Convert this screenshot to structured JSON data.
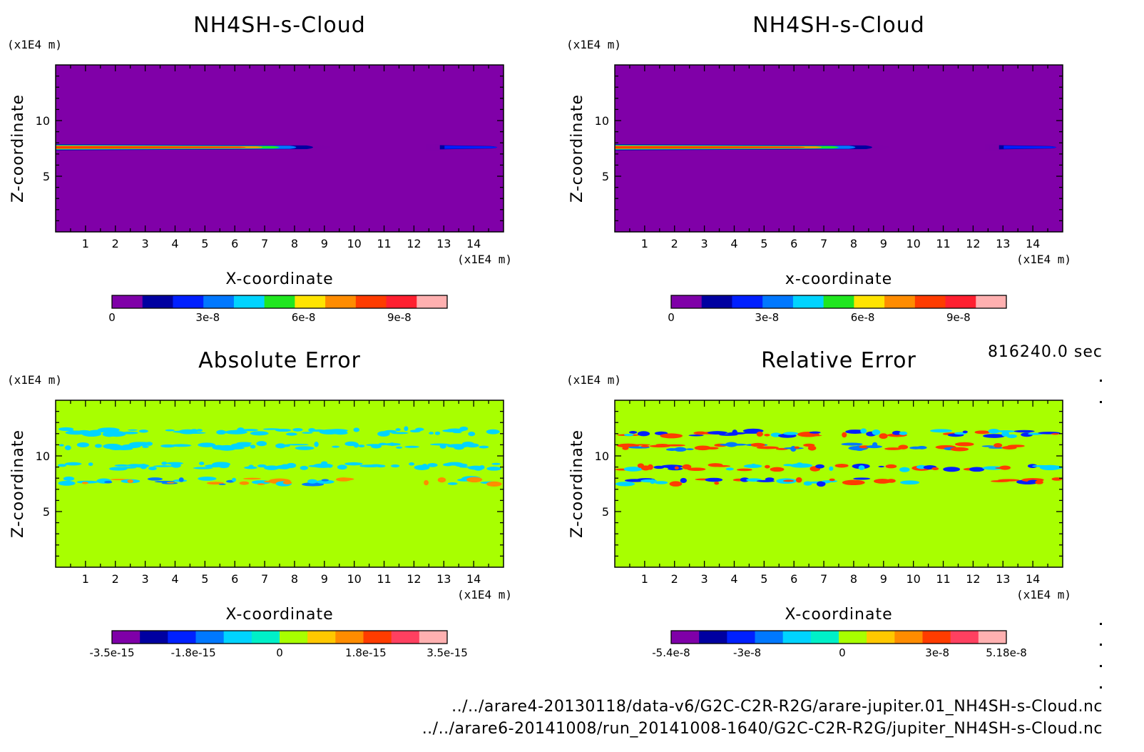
{
  "time_label": "816240.0 sec",
  "files": [
    "../../arare4-20130118/data-v6/G2C-C2R-R2G/arare-jupiter.01_NH4SH-s-Cloud.nc",
    "../../arare6-20141008/run_20141008-1640/G2C-C2R-R2G/jupiter_NH4SH-s-Cloud.nc"
  ],
  "chart_data": [
    {
      "type": "heatmap",
      "title": "NH4SH-s-Cloud",
      "xlabel": "X-coordinate",
      "ylabel": "Z-coordinate",
      "x_unit": "(x1E4 m)",
      "y_unit": "(x1E4 m)",
      "xlim": [
        0,
        15
      ],
      "ylim": [
        0,
        15
      ],
      "x_ticks": [
        1,
        2,
        3,
        4,
        5,
        6,
        7,
        8,
        9,
        10,
        11,
        12,
        13,
        14
      ],
      "y_ticks": [
        5,
        10
      ],
      "background_color": "#8000a8",
      "colorbar": {
        "min": 0,
        "max": 1.05e-07,
        "tick_values": [
          0,
          3e-08,
          6e-08,
          9e-08
        ],
        "tick_labels": [
          "0",
          "3e-8",
          "6e-8",
          "9e-8"
        ],
        "colors": [
          "#7f00a8",
          "#0000a0",
          "#0020ff",
          "#0078ff",
          "#00d4ff",
          "#20e620",
          "#ffe400",
          "#ff8c00",
          "#ff3c00",
          "#ff2030",
          "#ffb0b0"
        ]
      },
      "features": [
        {
          "kind": "layer",
          "x": [
            0,
            9.4
          ],
          "z": 7.6,
          "peak": 1e-07
        },
        {
          "kind": "layer",
          "x": [
            12.4,
            15
          ],
          "z": 7.6,
          "peak": 3e-08
        }
      ]
    },
    {
      "type": "heatmap",
      "title": "NH4SH-s-Cloud",
      "xlabel": "x-coordinate",
      "ylabel": "Z-coordinate",
      "x_unit": "(x1E4 m)",
      "y_unit": "(x1E4 m)",
      "xlim": [
        0,
        15
      ],
      "ylim": [
        0,
        15
      ],
      "x_ticks": [
        1,
        2,
        3,
        4,
        5,
        6,
        7,
        8,
        9,
        10,
        11,
        12,
        13,
        14
      ],
      "y_ticks": [
        5,
        10
      ],
      "background_color": "#8000a8",
      "colorbar": {
        "min": 0,
        "max": 1.05e-07,
        "tick_values": [
          0,
          3e-08,
          6e-08,
          9e-08
        ],
        "tick_labels": [
          "0",
          "3e-8",
          "6e-8",
          "9e-8"
        ],
        "colors": [
          "#7f00a8",
          "#0000a0",
          "#0020ff",
          "#0078ff",
          "#00d4ff",
          "#20e620",
          "#ffe400",
          "#ff8c00",
          "#ff3c00",
          "#ff2030",
          "#ffb0b0"
        ]
      },
      "features": [
        {
          "kind": "layer",
          "x": [
            0,
            9.4
          ],
          "z": 7.6,
          "peak": 1e-07
        },
        {
          "kind": "layer",
          "x": [
            12.4,
            15
          ],
          "z": 7.6,
          "peak": 3e-08
        }
      ]
    },
    {
      "type": "heatmap",
      "title": "Absolute Error",
      "xlabel": "X-coordinate",
      "ylabel": "Z-coordinate",
      "x_unit": "(x1E4 m)",
      "y_unit": "(x1E4 m)",
      "xlim": [
        0,
        15
      ],
      "ylim": [
        0,
        15
      ],
      "x_ticks": [
        1,
        2,
        3,
        4,
        5,
        6,
        7,
        8,
        9,
        10,
        11,
        12,
        13,
        14
      ],
      "y_ticks": [
        5,
        10
      ],
      "background_color": "#a8ff00",
      "colorbar": {
        "min": -3.5e-15,
        "max": 3.5e-15,
        "tick_values": [
          -3.5e-15,
          -1.8e-15,
          0,
          1.8e-15,
          3.5e-15
        ],
        "tick_labels": [
          "-3.5e-15",
          "-1.8e-15",
          "0",
          "1.8e-15",
          "3.5e-15"
        ],
        "colors": [
          "#7f00a8",
          "#0000a0",
          "#0020ff",
          "#0078ff",
          "#00d4ff",
          "#00f0c8",
          "#a8ff00",
          "#ffc800",
          "#ff8c00",
          "#ff3c00",
          "#ff4060",
          "#ffb0b0"
        ]
      },
      "features": [
        {
          "kind": "noise-band",
          "z": 12.2,
          "x": [
            0,
            15
          ],
          "colors": [
            "#00d4ff"
          ]
        },
        {
          "kind": "noise-band",
          "z": 10.9,
          "x": [
            0,
            15
          ],
          "colors": [
            "#00d4ff"
          ]
        },
        {
          "kind": "noise-band",
          "z": 9.1,
          "x": [
            0,
            15
          ],
          "colors": [
            "#00d4ff"
          ]
        },
        {
          "kind": "noise-band",
          "z": 7.7,
          "x": [
            0,
            9.7
          ],
          "colors": [
            "#00d4ff",
            "#0078ff",
            "#ff8c00"
          ]
        },
        {
          "kind": "noise-band",
          "z": 7.7,
          "x": [
            12.3,
            15
          ],
          "colors": [
            "#00d4ff",
            "#ff8c00"
          ]
        }
      ]
    },
    {
      "type": "heatmap",
      "title": "Relative Error",
      "xlabel": "X-coordinate",
      "ylabel": "Z-coordinate",
      "x_unit": "(x1E4 m)",
      "y_unit": "(x1E4 m)",
      "xlim": [
        0,
        15
      ],
      "ylim": [
        0,
        15
      ],
      "x_ticks": [
        1,
        2,
        3,
        4,
        5,
        6,
        7,
        8,
        9,
        10,
        11,
        12,
        13,
        14
      ],
      "y_ticks": [
        5,
        10
      ],
      "background_color": "#a8ff00",
      "colorbar": {
        "min": -5.4e-08,
        "max": 5.18e-08,
        "tick_values": [
          -5.4e-08,
          -3e-08,
          0,
          3e-08,
          5.18e-08
        ],
        "tick_labels": [
          "-5.4e-8",
          "-3e-8",
          "0",
          "3e-8",
          "5.18e-8"
        ],
        "colors": [
          "#7f00a8",
          "#0000a0",
          "#0020ff",
          "#0078ff",
          "#00d4ff",
          "#00f0c8",
          "#a8ff00",
          "#ffc800",
          "#ff8c00",
          "#ff3c00",
          "#ff4060",
          "#ffb0b0"
        ]
      },
      "features": [
        {
          "kind": "noise-band",
          "z": 12.0,
          "x": [
            0,
            15
          ],
          "colors": [
            "#00d4ff",
            "#0020ff",
            "#ff3c00"
          ]
        },
        {
          "kind": "noise-band",
          "z": 10.8,
          "x": [
            0,
            15
          ],
          "colors": [
            "#0078ff",
            "#ff3c00"
          ]
        },
        {
          "kind": "noise-band",
          "z": 9.0,
          "x": [
            0,
            15
          ],
          "colors": [
            "#0020ff",
            "#00d4ff",
            "#ff3c00"
          ]
        },
        {
          "kind": "noise-band",
          "z": 7.7,
          "x": [
            0,
            9.7
          ],
          "colors": [
            "#0020ff",
            "#00d4ff",
            "#ff3c00"
          ]
        },
        {
          "kind": "noise-band",
          "z": 7.7,
          "x": [
            12.3,
            15
          ],
          "colors": [
            "#0020ff",
            "#ff3c00"
          ]
        }
      ]
    }
  ]
}
